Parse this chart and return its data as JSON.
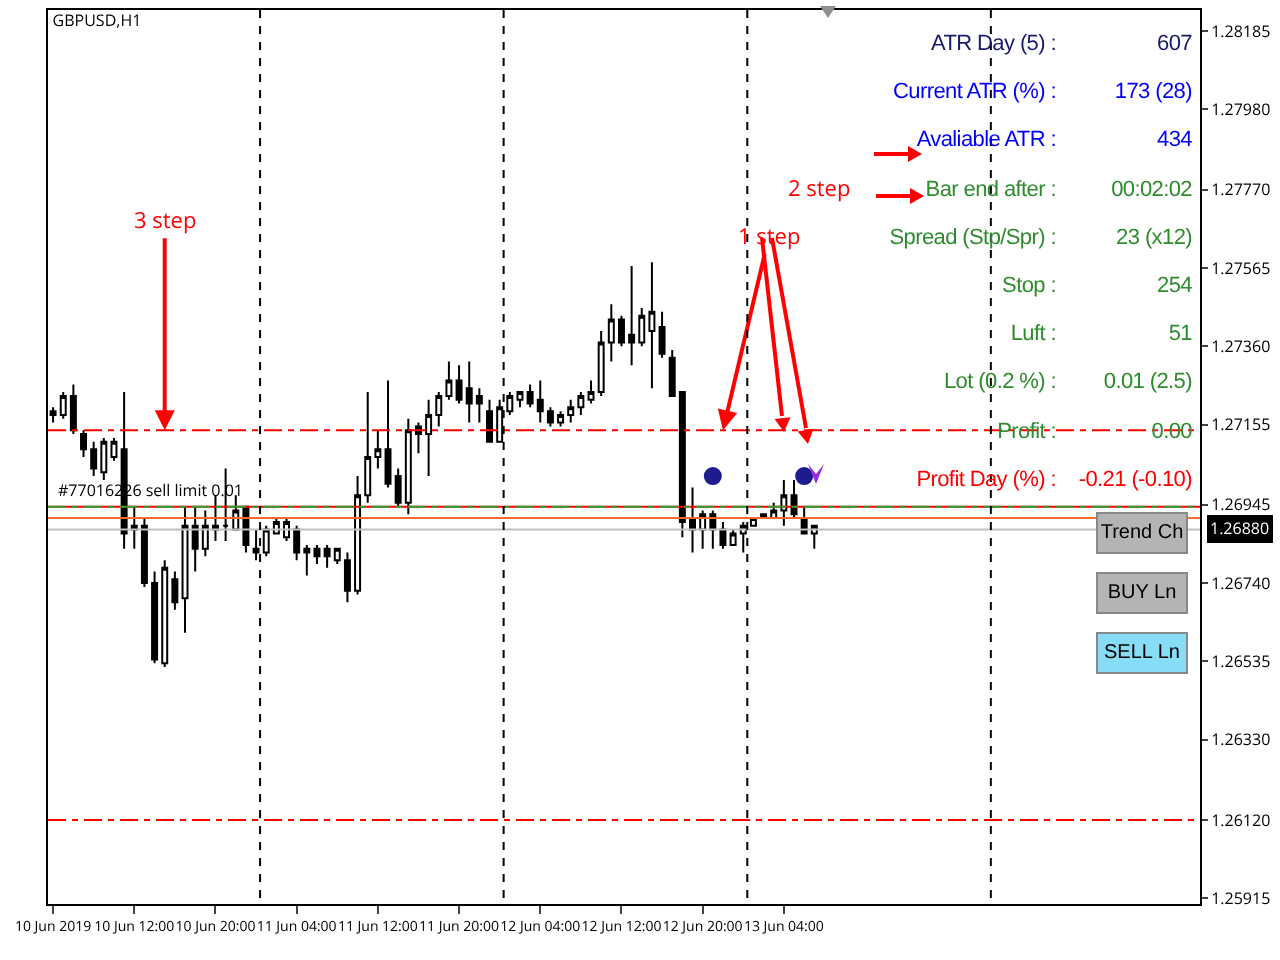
{
  "chart_data": [
    {
      "type": "candlestick",
      "title": "GBPUSD,H1",
      "x": [
        "2019-06-10T04:00",
        "2019-06-10T05:00",
        "2019-06-10T06:00",
        "2019-06-10T07:00",
        "2019-06-10T08:00",
        "2019-06-10T09:00",
        "2019-06-10T10:00",
        "2019-06-10T11:00",
        "2019-06-10T12:00",
        "2019-06-10T13:00",
        "2019-06-10T14:00",
        "2019-06-10T15:00",
        "2019-06-10T16:00",
        "2019-06-10T17:00",
        "2019-06-10T18:00",
        "2019-06-10T19:00",
        "2019-06-10T20:00",
        "2019-06-10T21:00",
        "2019-06-10T22:00",
        "2019-06-10T23:00",
        "2019-06-11T00:00",
        "2019-06-11T01:00",
        "2019-06-11T02:00",
        "2019-06-11T03:00",
        "2019-06-11T04:00",
        "2019-06-11T05:00",
        "2019-06-11T06:00",
        "2019-06-11T07:00",
        "2019-06-11T08:00",
        "2019-06-11T09:00",
        "2019-06-11T10:00",
        "2019-06-11T11:00",
        "2019-06-11T12:00",
        "2019-06-11T13:00",
        "2019-06-11T14:00",
        "2019-06-11T15:00",
        "2019-06-11T16:00",
        "2019-06-11T17:00",
        "2019-06-11T18:00",
        "2019-06-11T19:00",
        "2019-06-11T20:00",
        "2019-06-11T21:00",
        "2019-06-11T22:00",
        "2019-06-11T23:00",
        "2019-06-12T00:00",
        "2019-06-12T01:00",
        "2019-06-12T02:00",
        "2019-06-12T03:00",
        "2019-06-12T04:00",
        "2019-06-12T05:00",
        "2019-06-12T06:00",
        "2019-06-12T07:00",
        "2019-06-12T08:00",
        "2019-06-12T09:00",
        "2019-06-12T10:00",
        "2019-06-12T11:00",
        "2019-06-12T12:00",
        "2019-06-12T13:00",
        "2019-06-12T14:00",
        "2019-06-12T15:00",
        "2019-06-12T16:00",
        "2019-06-12T17:00",
        "2019-06-12T18:00",
        "2019-06-12T19:00",
        "2019-06-12T20:00",
        "2019-06-12T21:00",
        "2019-06-12T22:00",
        "2019-06-12T23:00",
        "2019-06-13T00:00",
        "2019-06-13T01:00",
        "2019-06-13T02:00",
        "2019-06-13T03:00",
        "2019-06-13T04:00",
        "2019-06-13T05:00",
        "2019-06-13T06:00",
        "2019-06-13T07:00"
      ],
      "ohlc": [
        [
          1.2719,
          1.272,
          1.2716,
          1.2718
        ],
        [
          1.2718,
          1.2724,
          1.2717,
          1.2723
        ],
        [
          1.2723,
          1.2726,
          1.2713,
          1.2714
        ],
        [
          1.2713,
          1.2714,
          1.2707,
          1.2709
        ],
        [
          1.2709,
          1.2711,
          1.2702,
          1.2704
        ],
        [
          1.2703,
          1.2712,
          1.2701,
          1.2711
        ],
        [
          1.2707,
          1.2712,
          1.2706,
          1.2711
        ],
        [
          1.2709,
          1.2724,
          1.2683,
          1.2687
        ],
        [
          1.2688,
          1.2694,
          1.2683,
          1.2689
        ],
        [
          1.2689,
          1.2691,
          1.2673,
          1.2674
        ],
        [
          1.2674,
          1.2677,
          1.2653,
          1.2654
        ],
        [
          1.2653,
          1.268,
          1.2652,
          1.2678
        ],
        [
          1.2675,
          1.2677,
          1.2667,
          1.2669
        ],
        [
          1.267,
          1.2694,
          1.2661,
          1.2689
        ],
        [
          1.2689,
          1.2694,
          1.2677,
          1.2683
        ],
        [
          1.2683,
          1.2693,
          1.2681,
          1.2689
        ],
        [
          1.2689,
          1.2697,
          1.2685,
          1.2688
        ],
        [
          1.2689,
          1.2704,
          1.2685,
          1.2689
        ],
        [
          1.2688,
          1.2697,
          1.2688,
          1.2693
        ],
        [
          1.2694,
          1.2694,
          1.2682,
          1.2684
        ],
        [
          1.2683,
          1.2688,
          1.268,
          1.2682
        ],
        [
          1.2682,
          1.2689,
          1.2681,
          1.2688
        ],
        [
          1.2687,
          1.2691,
          1.2687,
          1.269
        ],
        [
          1.2686,
          1.2691,
          1.2685,
          1.269
        ],
        [
          1.2688,
          1.2689,
          1.268,
          1.2682
        ],
        [
          1.2683,
          1.2684,
          1.2676,
          1.2682
        ],
        [
          1.2683,
          1.2684,
          1.2679,
          1.2681
        ],
        [
          1.2683,
          1.2684,
          1.2678,
          1.2681
        ],
        [
          1.268,
          1.2683,
          1.2679,
          1.2683
        ],
        [
          1.268,
          1.2682,
          1.2669,
          1.2672
        ],
        [
          1.2672,
          1.2702,
          1.2671,
          1.2697
        ],
        [
          1.2697,
          1.2724,
          1.2695,
          1.2707
        ],
        [
          1.2707,
          1.2714,
          1.2704,
          1.2709
        ],
        [
          1.2709,
          1.2727,
          1.2699,
          1.27
        ],
        [
          1.2702,
          1.2704,
          1.2694,
          1.2695
        ],
        [
          1.2695,
          1.2717,
          1.2692,
          1.2714
        ],
        [
          1.2715,
          1.2716,
          1.2708,
          1.2713
        ],
        [
          1.2713,
          1.2722,
          1.2702,
          1.2718
        ],
        [
          1.2718,
          1.2724,
          1.2715,
          1.2723
        ],
        [
          1.2723,
          1.2732,
          1.2722,
          1.2727
        ],
        [
          1.2727,
          1.2731,
          1.2721,
          1.2722
        ],
        [
          1.2725,
          1.2732,
          1.2716,
          1.2721
        ],
        [
          1.2723,
          1.2725,
          1.2716,
          1.2721
        ],
        [
          1.2719,
          1.2722,
          1.2711,
          1.2711
        ],
        [
          1.2711,
          1.2722,
          1.2711,
          1.272
        ],
        [
          1.2719,
          1.2724,
          1.2718,
          1.2723
        ],
        [
          1.2722,
          1.2724,
          1.272,
          1.2724
        ],
        [
          1.2724,
          1.2726,
          1.272,
          1.2721
        ],
        [
          1.2722,
          1.2727,
          1.2716,
          1.2719
        ],
        [
          1.2719,
          1.272,
          1.2715,
          1.2716
        ],
        [
          1.2716,
          1.2719,
          1.2715,
          1.2718
        ],
        [
          1.2718,
          1.2722,
          1.2716,
          1.272
        ],
        [
          1.272,
          1.2724,
          1.2718,
          1.2723
        ],
        [
          1.2722,
          1.2727,
          1.2721,
          1.2724
        ],
        [
          1.2724,
          1.274,
          1.2723,
          1.2737
        ],
        [
          1.2737,
          1.2747,
          1.2732,
          1.2743
        ],
        [
          1.2743,
          1.2744,
          1.2736,
          1.2737
        ],
        [
          1.2739,
          1.2757,
          1.2731,
          1.2737
        ],
        [
          1.2737,
          1.2746,
          1.2736,
          1.2744
        ],
        [
          1.274,
          1.2758,
          1.2725,
          1.2745
        ],
        [
          1.2741,
          1.2745,
          1.2733,
          1.2734
        ],
        [
          1.2733,
          1.2735,
          1.2723,
          1.2723
        ],
        [
          1.2724,
          1.2724,
          1.2686,
          1.269
        ],
        [
          1.2691,
          1.2699,
          1.2682,
          1.2688
        ],
        [
          1.2688,
          1.2693,
          1.2683,
          1.2692
        ],
        [
          1.2692,
          1.2693,
          1.2683,
          1.2688
        ],
        [
          1.2688,
          1.269,
          1.2683,
          1.2684
        ],
        [
          1.2684,
          1.2688,
          1.2684,
          1.2687
        ],
        [
          1.2687,
          1.269,
          1.2682,
          1.2689
        ],
        [
          1.2689,
          1.2691,
          1.2689,
          1.2691
        ],
        [
          1.2692,
          1.2692,
          1.2691,
          1.2691
        ],
        [
          1.2691,
          1.2695,
          1.2691,
          1.2693
        ],
        [
          1.2693,
          1.2701,
          1.2689,
          1.2697
        ],
        [
          1.2697,
          1.2701,
          1.2691,
          1.2692
        ],
        [
          1.2691,
          1.2694,
          1.2687,
          1.2687
        ],
        [
          1.2687,
          1.2689,
          1.2683,
          1.2689
        ]
      ],
      "series": [
        {
          "type": "scatter",
          "x": [
            "2019-06-12T21:00",
            "2019-06-13T06:00"
          ],
          "values": [
            1.2702,
            1.2702
          ],
          "color": "#1c1c8c"
        }
      ],
      "marker": "circle",
      "xlim": [
        "2019-06-10T03:30",
        "2019-06-14T21:00"
      ],
      "xticks": [
        {
          "value": "2019-06-10T04:00",
          "label": "10 Jun 2019"
        },
        {
          "value": "2019-06-10T12:00",
          "label": "10 Jun 12:00"
        },
        {
          "value": "2019-06-10T20:00",
          "label": "10 Jun 20:00"
        },
        {
          "value": "2019-06-11T04:00",
          "label": "11 Jun 04:00"
        },
        {
          "value": "2019-06-11T12:00",
          "label": "11 Jun 12:00"
        },
        {
          "value": "2019-06-11T20:00",
          "label": "11 Jun 20:00"
        },
        {
          "value": "2019-06-12T04:00",
          "label": "12 Jun 04:00"
        },
        {
          "value": "2019-06-12T12:00",
          "label": "12 Jun 12:00"
        },
        {
          "value": "2019-06-12T20:00",
          "label": "12 Jun 20:00"
        },
        {
          "value": "2019-06-13T04:00",
          "label": "13 Jun 04:00"
        }
      ],
      "ylim": [
        1.259,
        1.2824
      ],
      "yticks": [
        {
          "value": 1.28185,
          "label": "1.28185"
        },
        {
          "value": 1.2798,
          "label": "1.27980"
        },
        {
          "value": 1.2777,
          "label": "1.27770"
        },
        {
          "value": 1.27565,
          "label": "1.27565"
        },
        {
          "value": 1.2736,
          "label": "1.27360"
        },
        {
          "value": 1.27155,
          "label": "1.27155"
        },
        {
          "value": 1.26945,
          "label": "1.26945"
        },
        {
          "value": 1.2674,
          "label": "1.26740"
        },
        {
          "value": 1.26535,
          "label": "1.26535"
        },
        {
          "value": 1.2633,
          "label": "1.26330"
        },
        {
          "value": 1.2612,
          "label": "1.26120"
        },
        {
          "value": 1.25915,
          "label": "1.25915"
        }
      ],
      "ref_lines": [
        {
          "axis": "x",
          "value": "2019-06-11T00:00",
          "color": "#000000",
          "line_style": "dashed"
        },
        {
          "axis": "x",
          "value": "2019-06-12T00:00",
          "color": "#000000",
          "line_style": "dashed"
        },
        {
          "axis": "x",
          "value": "2019-06-13T00:00",
          "color": "#000000",
          "line_style": "dashed"
        },
        {
          "axis": "x",
          "value": "2019-06-14T00:00",
          "color": "#000000",
          "line_style": "dashed"
        },
        {
          "axis": "y",
          "value": 1.2714,
          "color": "#ff0000",
          "line_style": "dashdot"
        },
        {
          "axis": "y",
          "value": 1.2612,
          "color": "#ff0000",
          "line_style": "dashdot"
        },
        {
          "axis": "y",
          "value": 1.2694,
          "color": "#ff0000",
          "line_style": "solid"
        },
        {
          "axis": "y",
          "value": 1.2694,
          "color": "#2e9e2e",
          "line_style": "dashdot"
        },
        {
          "axis": "y",
          "value": 1.2691,
          "color": "#ff6a2a",
          "line_style": "solid"
        },
        {
          "axis": "y",
          "value": 1.2688,
          "color": "#c0c0c0",
          "line_style": "solid",
          "label": "1.26880"
        }
      ],
      "annotations": [
        {
          "text": "#77016226 sell limit 0.01",
          "x": "2019-06-10T04:00",
          "y": 1.2694
        },
        {
          "text": "3 step",
          "x": "2019-06-10T15:00",
          "y": 1.2714
        },
        {
          "text": "1 step",
          "x": "2019-06-12T22:00",
          "y": 1.2714
        },
        "2 step"
      ],
      "grid": false
    },
    {
      "type": "other",
      "annotations": [
        "ATR Day (5) :",
        "607",
        "Current ATR (%) :",
        "173 (28)",
        "Avaliable ATR :",
        "434",
        "Bar end after :",
        "00:02:02",
        "Spread (Stp/Spr) :",
        "23 (x12)",
        "Stop :",
        "254",
        "Luft :",
        "51",
        "Lot (0.2 %) :",
        "0.01 (2.5)",
        "Profit :",
        "0.00",
        "Profit Day (%) :",
        "-0.21 (-0.10)",
        "Trend Ch",
        "BUY Ln",
        "SELL Ln"
      ]
    }
  ]
}
